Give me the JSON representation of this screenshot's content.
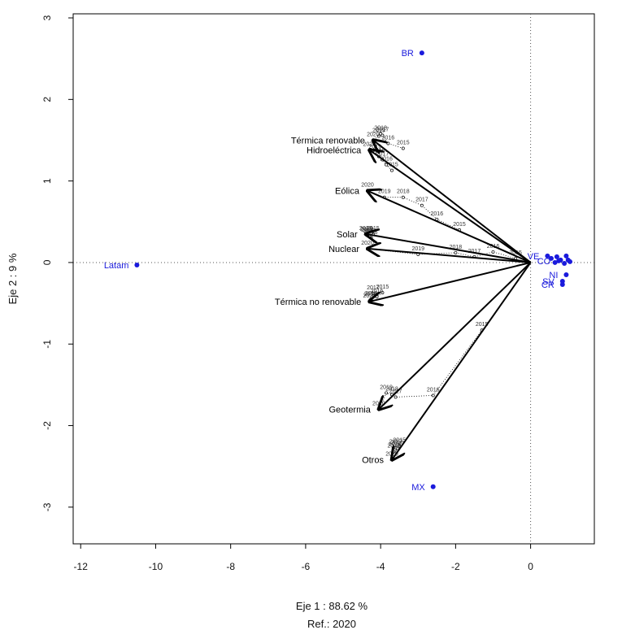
{
  "chart_data": {
    "type": "scatter",
    "subtype": "biplot",
    "xlabel": "Eje 1 :  88.62 %",
    "ylabel": "Eje 2 :  9 %",
    "reference": "Ref.:  2020",
    "xlim": [
      -12.2,
      1.7
    ],
    "ylim": [
      -3.45,
      3.05
    ],
    "xticks": [
      -12,
      -10,
      -8,
      -6,
      -4,
      -2,
      0
    ],
    "yticks": [
      -3,
      -2,
      -1,
      0,
      1,
      2,
      3
    ],
    "xtick_labels": [
      "-12",
      "-10",
      "-8",
      "-6",
      "-4",
      "-2",
      "0"
    ],
    "ytick_labels": [
      "-3",
      "-2",
      "-1",
      "0",
      "1",
      "2",
      "3"
    ],
    "reference_lines": {
      "x": 0,
      "y": 0,
      "style": "dotted"
    },
    "arrow_color": "#000000",
    "point_color": "#1a1adc",
    "variables": [
      {
        "name": "Térmica renovable",
        "x": -4.2,
        "y": 1.5,
        "label_offset": "left",
        "trajectory": [
          {
            "year": "2015",
            "x": -3.4,
            "y": 1.4
          },
          {
            "year": "2016",
            "x": -3.8,
            "y": 1.46
          },
          {
            "year": "2017",
            "x": -3.95,
            "y": 1.56
          },
          {
            "year": "2018",
            "x": -4.0,
            "y": 1.58
          },
          {
            "year": "2019",
            "x": -4.05,
            "y": 1.55
          },
          {
            "year": "2020",
            "x": -4.2,
            "y": 1.5
          }
        ]
      },
      {
        "name": "Hidroeléctrica",
        "x": -4.3,
        "y": 1.38,
        "label_offset": "left",
        "trajectory": [
          {
            "year": "2015",
            "x": -3.7,
            "y": 1.13
          },
          {
            "year": "2016",
            "x": -3.85,
            "y": 1.2
          },
          {
            "year": "2017",
            "x": -3.95,
            "y": 1.26
          },
          {
            "year": "2018",
            "x": -4.05,
            "y": 1.3
          },
          {
            "year": "2019",
            "x": -4.15,
            "y": 1.35
          },
          {
            "year": "2020",
            "x": -4.3,
            "y": 1.38
          }
        ]
      },
      {
        "name": "Eólica",
        "x": -4.35,
        "y": 0.88,
        "label_offset": "left",
        "trajectory": [
          {
            "year": "2015",
            "x": -1.9,
            "y": 0.4
          },
          {
            "year": "2016",
            "x": -2.5,
            "y": 0.53
          },
          {
            "year": "2017",
            "x": -2.9,
            "y": 0.7
          },
          {
            "year": "2018",
            "x": -3.4,
            "y": 0.8
          },
          {
            "year": "2019",
            "x": -3.9,
            "y": 0.8
          },
          {
            "year": "2020",
            "x": -4.35,
            "y": 0.88
          }
        ]
      },
      {
        "name": "Solar",
        "x": -4.4,
        "y": 0.35,
        "label_offset": "left",
        "trajectory": [
          {
            "year": "2015",
            "x": -4.2,
            "y": 0.35
          },
          {
            "year": "2016",
            "x": -4.25,
            "y": 0.3
          },
          {
            "year": "2017",
            "x": -4.3,
            "y": 0.32
          },
          {
            "year": "2018",
            "x": -4.35,
            "y": 0.33
          },
          {
            "year": "2019",
            "x": -4.38,
            "y": 0.34
          },
          {
            "year": "2020",
            "x": -4.4,
            "y": 0.35
          }
        ]
      },
      {
        "name": "Nuclear",
        "x": -4.35,
        "y": 0.17,
        "label_offset": "left",
        "trajectory": [
          {
            "year": "2015",
            "x": -0.4,
            "y": 0.05
          },
          {
            "year": "2016",
            "x": -1.0,
            "y": 0.13
          },
          {
            "year": "2017",
            "x": -1.5,
            "y": 0.07
          },
          {
            "year": "2018",
            "x": -2.0,
            "y": 0.12
          },
          {
            "year": "2019",
            "x": -3.0,
            "y": 0.1
          },
          {
            "year": "2020",
            "x": -4.35,
            "y": 0.17
          }
        ]
      },
      {
        "name": "Térmica no renovable",
        "x": -4.3,
        "y": -0.48,
        "label_offset": "left",
        "trajectory": [
          {
            "year": "2015",
            "x": -3.95,
            "y": -0.37
          },
          {
            "year": "2016",
            "x": -4.1,
            "y": -0.42
          },
          {
            "year": "2017",
            "x": -4.2,
            "y": -0.38
          },
          {
            "year": "2018",
            "x": -4.25,
            "y": -0.45
          },
          {
            "year": "2019",
            "x": -4.28,
            "y": -0.46
          },
          {
            "year": "2020",
            "x": -4.3,
            "y": -0.48
          }
        ]
      },
      {
        "name": "Geotermia",
        "x": -4.05,
        "y": -1.8,
        "label_offset": "left",
        "trajectory": [
          {
            "year": "2015",
            "x": -1.3,
            "y": -0.83
          },
          {
            "year": "2016",
            "x": -2.6,
            "y": -1.63
          },
          {
            "year": "2017",
            "x": -3.6,
            "y": -1.65
          },
          {
            "year": "2018",
            "x": -3.7,
            "y": -1.62
          },
          {
            "year": "2019",
            "x": -3.85,
            "y": -1.6
          },
          {
            "year": "2020",
            "x": -4.05,
            "y": -1.8
          }
        ]
      },
      {
        "name": "Otros",
        "x": -3.7,
        "y": -2.42,
        "label_offset": "left",
        "trajectory": [
          {
            "year": "2015",
            "x": -3.5,
            "y": -2.25
          },
          {
            "year": "2016",
            "x": -3.55,
            "y": -2.28
          },
          {
            "year": "2017",
            "x": -3.6,
            "y": -2.27
          },
          {
            "year": "2018",
            "x": -3.62,
            "y": -2.3
          },
          {
            "year": "2019",
            "x": -3.65,
            "y": -2.32
          },
          {
            "year": "2020",
            "x": -3.7,
            "y": -2.42
          }
        ]
      }
    ],
    "individuals": [
      {
        "label": "BR",
        "x": -2.9,
        "y": 2.57,
        "label_side": "left"
      },
      {
        "label": "Latam",
        "x": -10.5,
        "y": -0.03,
        "label_side": "left"
      },
      {
        "label": "MX",
        "x": -2.6,
        "y": -2.75,
        "label_side": "left"
      },
      {
        "label": "VE",
        "x": 0.45,
        "y": 0.08,
        "label_side": "left"
      },
      {
        "label": "CO",
        "x": 0.75,
        "y": 0.02,
        "label_side": "left"
      },
      {
        "label": "NI",
        "x": 0.95,
        "y": -0.15,
        "label_side": "left"
      },
      {
        "label": "SV",
        "x": 0.85,
        "y": -0.23,
        "label_side": "left"
      },
      {
        "label": "CR",
        "x": 0.85,
        "y": -0.27,
        "label_side": "left"
      },
      {
        "label": "",
        "x": 0.55,
        "y": 0.05,
        "label_side": "none"
      },
      {
        "label": "",
        "x": 0.65,
        "y": 0.0,
        "label_side": "none"
      },
      {
        "label": "",
        "x": 0.8,
        "y": 0.03,
        "label_side": "none"
      },
      {
        "label": "",
        "x": 0.95,
        "y": 0.08,
        "label_side": "none"
      },
      {
        "label": "",
        "x": 1.0,
        "y": 0.03,
        "label_side": "none"
      },
      {
        "label": "",
        "x": 1.05,
        "y": 0.01,
        "label_side": "none"
      },
      {
        "label": "",
        "x": 0.7,
        "y": 0.07,
        "label_side": "none"
      },
      {
        "label": "",
        "x": 0.9,
        "y": -0.01,
        "label_side": "none"
      }
    ]
  }
}
